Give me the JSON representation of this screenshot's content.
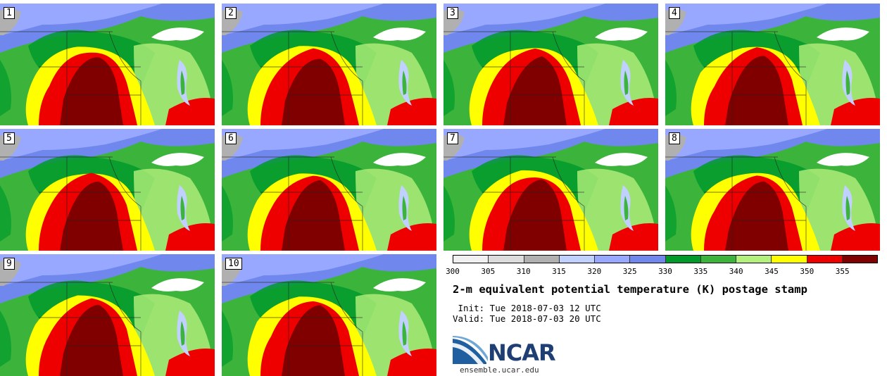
{
  "panels": [
    {
      "label": "1"
    },
    {
      "label": "2"
    },
    {
      "label": "3"
    },
    {
      "label": "4"
    },
    {
      "label": "5"
    },
    {
      "label": "6"
    },
    {
      "label": "7"
    },
    {
      "label": "8"
    },
    {
      "label": "9"
    },
    {
      "label": "10"
    }
  ],
  "legend": {
    "colors": [
      "#f0f0f0",
      "#dcdcdc",
      "#b0b0b0",
      "#c0d0ff",
      "#98a8ff",
      "#7088ee",
      "#009a2a",
      "#3cb43c",
      "#b4f07c",
      "#ffff00",
      "#ee0000",
      "#800000"
    ],
    "ticks": [
      "300",
      "305",
      "310",
      "315",
      "320",
      "325",
      "330",
      "335",
      "340",
      "345",
      "350",
      "355"
    ]
  },
  "title": "2-m equivalent potential temperature (K) postage stamp",
  "init": " Init: Tue 2018-07-03 12 UTC",
  "valid": "Valid: Tue 2018-07-03 20 UTC",
  "logo": {
    "text": "NCAR",
    "url": "ensemble.ucar.edu"
  }
}
